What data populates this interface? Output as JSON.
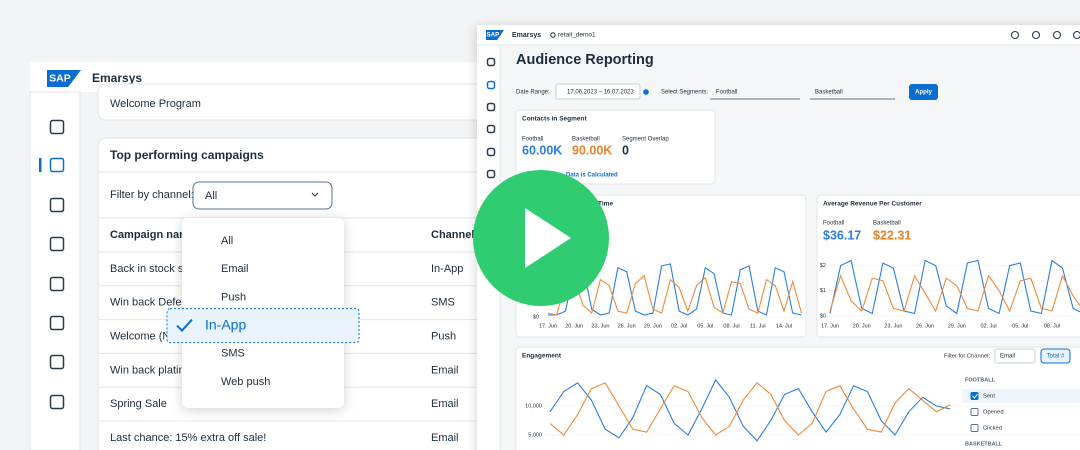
{
  "background_app": {
    "logo": "SAP",
    "brand": "Emarsys",
    "welcome_card": "Welcome Program",
    "campaigns_card": {
      "title": "Top performing campaigns",
      "filter_label": "Filter by channel:",
      "filter_value": "All",
      "columns": [
        "Campaign name",
        "Channel"
      ],
      "rows": [
        [
          "Back in stock sale",
          "In-App"
        ],
        [
          "Win back Defecti",
          "SMS"
        ],
        [
          "Welcome (Ne",
          "Push"
        ],
        [
          "Win back platinu",
          "Email"
        ],
        [
          "Spring Sale",
          "Email"
        ],
        [
          "Last chance: 15% extra off sale!",
          "Email"
        ]
      ]
    },
    "dropdown": {
      "options": [
        "All",
        "Email",
        "Push",
        "In-App",
        "SMS",
        "Web push"
      ],
      "selected": 3
    }
  },
  "reporting_app": {
    "logo": "SAP",
    "brand": "Emarsys",
    "account": "retail_demo1",
    "title": "Audience Reporting",
    "filters": {
      "date_label": "Date Range:",
      "date_value": "17.06.2023 – 16.07.2023",
      "segments_label": "Select Segments:",
      "segment_1": "Football",
      "segment_2": "Basketball",
      "apply": "Apply"
    },
    "contacts_card": {
      "title": "Contacts in Segment",
      "metrics": [
        {
          "label": "Football",
          "value": "60.00K",
          "color": "#2a7de1"
        },
        {
          "label": "Basketball",
          "value": "90.00K",
          "color": "#e8822b"
        },
        {
          "label": "Segment Overlap",
          "value": "0",
          "color": "#1d2d3e"
        }
      ],
      "link": "Data is Calculated"
    }
  },
  "chart_data": [
    {
      "type": "line",
      "title": "Time",
      "kpi_fragment": "M",
      "kpi_color": "#e8822b",
      "categories": [
        "17. Jun",
        null,
        null,
        "20. Jun",
        null,
        null,
        "23. Jun",
        null,
        null,
        "26. Jun",
        null,
        null,
        "29. Jun",
        null,
        null,
        "02. Jul",
        null,
        null,
        "05. Jul",
        null,
        null,
        "08. Jul",
        null,
        null,
        "11. Jul",
        null,
        null,
        "14. Jul",
        null,
        null
      ],
      "ylim": [
        0,
        3
      ],
      "yticks": [
        {
          "value": 0,
          "label": "$0"
        }
      ],
      "grid": true,
      "series": [
        {
          "color": "#2a7de1",
          "values": [
            0.1,
            0.1,
            0.3,
            2.4,
            2.6,
            0.4,
            0.1,
            0.2,
            2.5,
            2.3,
            0.3,
            0.1,
            0.2,
            2.6,
            2.7,
            0.3,
            0.1,
            0.4,
            2.5,
            2.2,
            0.2,
            0.1,
            2.4,
            2.6,
            0.3,
            0.1,
            2.5,
            2.3,
            0.2,
            0.1
          ]
        },
        {
          "color": "#f08a3a",
          "values": [
            0.2,
            0.1,
            1.8,
            2.0,
            0.6,
            0.2,
            1.9,
            1.6,
            0.3,
            0.2,
            1.7,
            2.1,
            0.4,
            0.2,
            1.9,
            1.5,
            0.3,
            1.6,
            2.0,
            0.5,
            0.2,
            1.8,
            1.7,
            0.4,
            0.2,
            1.9,
            1.6,
            0.3,
            1.8,
            0.2
          ]
        }
      ]
    },
    {
      "type": "line",
      "title": "Average Revenue Per Customer",
      "kpis": [
        {
          "label": "Football",
          "value": "$36.17",
          "color": "#2a7de1"
        },
        {
          "label": "Basketball",
          "value": "$22.31",
          "color": "#e8822b"
        }
      ],
      "categories": [
        "17. Jun",
        null,
        null,
        "20. Jun",
        null,
        null,
        "23. Jun",
        null,
        null,
        "26. Jun",
        null,
        null,
        "29. Jun",
        null,
        null,
        "02. Jul",
        null,
        null,
        "05. Jul",
        null,
        null,
        "08. Jul",
        null,
        null,
        null,
        null,
        null,
        null,
        null,
        null
      ],
      "ylim": [
        0,
        2.3
      ],
      "yticks": [
        {
          "value": 0,
          "label": "$0"
        },
        {
          "value": 1,
          "label": "$1"
        },
        {
          "value": 2,
          "label": "$2"
        }
      ],
      "grid": true,
      "series": [
        {
          "color": "#2a7de1",
          "values": [
            0.1,
            2.0,
            2.2,
            0.3,
            0.1,
            2.1,
            1.9,
            0.2,
            0.1,
            2.2,
            2.0,
            0.4,
            0.1,
            2.1,
            2.2,
            0.3,
            0.1,
            2.0,
            2.1,
            0.2,
            0.1,
            2.2,
            1.9,
            0.3,
            0.1,
            2.1,
            2.0,
            0.2,
            0.1,
            2.1
          ]
        },
        {
          "color": "#f08a3a",
          "values": [
            0.2,
            1.6,
            0.6,
            0.2,
            1.5,
            1.4,
            0.3,
            0.2,
            1.6,
            0.9,
            0.2,
            1.5,
            1.2,
            0.3,
            0.2,
            1.6,
            1.0,
            0.2,
            1.4,
            1.5,
            0.3,
            0.2,
            1.6,
            0.8,
            0.2,
            1.5,
            1.3,
            0.2,
            0.3,
            1.6
          ]
        }
      ]
    },
    {
      "type": "line",
      "title": "Engagement",
      "filter_label": "Filter for Channel:",
      "filter_value": "Email",
      "toggle": "Total #",
      "ylim": [
        2500,
        15000
      ],
      "yticks": [
        {
          "value": 5000,
          "label": "5,000"
        },
        {
          "value": 10000,
          "label": "10,000"
        }
      ],
      "grid": true,
      "legend_groups": [
        {
          "title": "FOOTBALL",
          "items": [
            {
              "label": "Sent",
              "checked": true
            },
            {
              "label": "Opened",
              "checked": false
            },
            {
              "label": "Clicked",
              "checked": false
            }
          ]
        },
        {
          "title": "BASKETBALL",
          "items": []
        }
      ],
      "series": [
        {
          "color": "#2a7de1",
          "values": [
            9000,
            12500,
            14000,
            11000,
            6000,
            4500,
            8000,
            13500,
            12000,
            7000,
            5000,
            9500,
            14500,
            11500,
            6500,
            4000,
            7500,
            12000,
            13000,
            9000,
            5500,
            8500,
            13500,
            12500,
            7500,
            5000,
            9000,
            11500,
            10000,
            9500
          ]
        },
        {
          "color": "#f08a3a",
          "values": [
            7000,
            5000,
            8500,
            13000,
            14000,
            10000,
            6000,
            5500,
            9500,
            13500,
            12500,
            8000,
            5000,
            6500,
            11000,
            14000,
            12000,
            7500,
            5000,
            7000,
            12500,
            13500,
            9500,
            6000,
            5500,
            10500,
            13000,
            11000,
            9000,
            10200
          ]
        }
      ]
    }
  ]
}
